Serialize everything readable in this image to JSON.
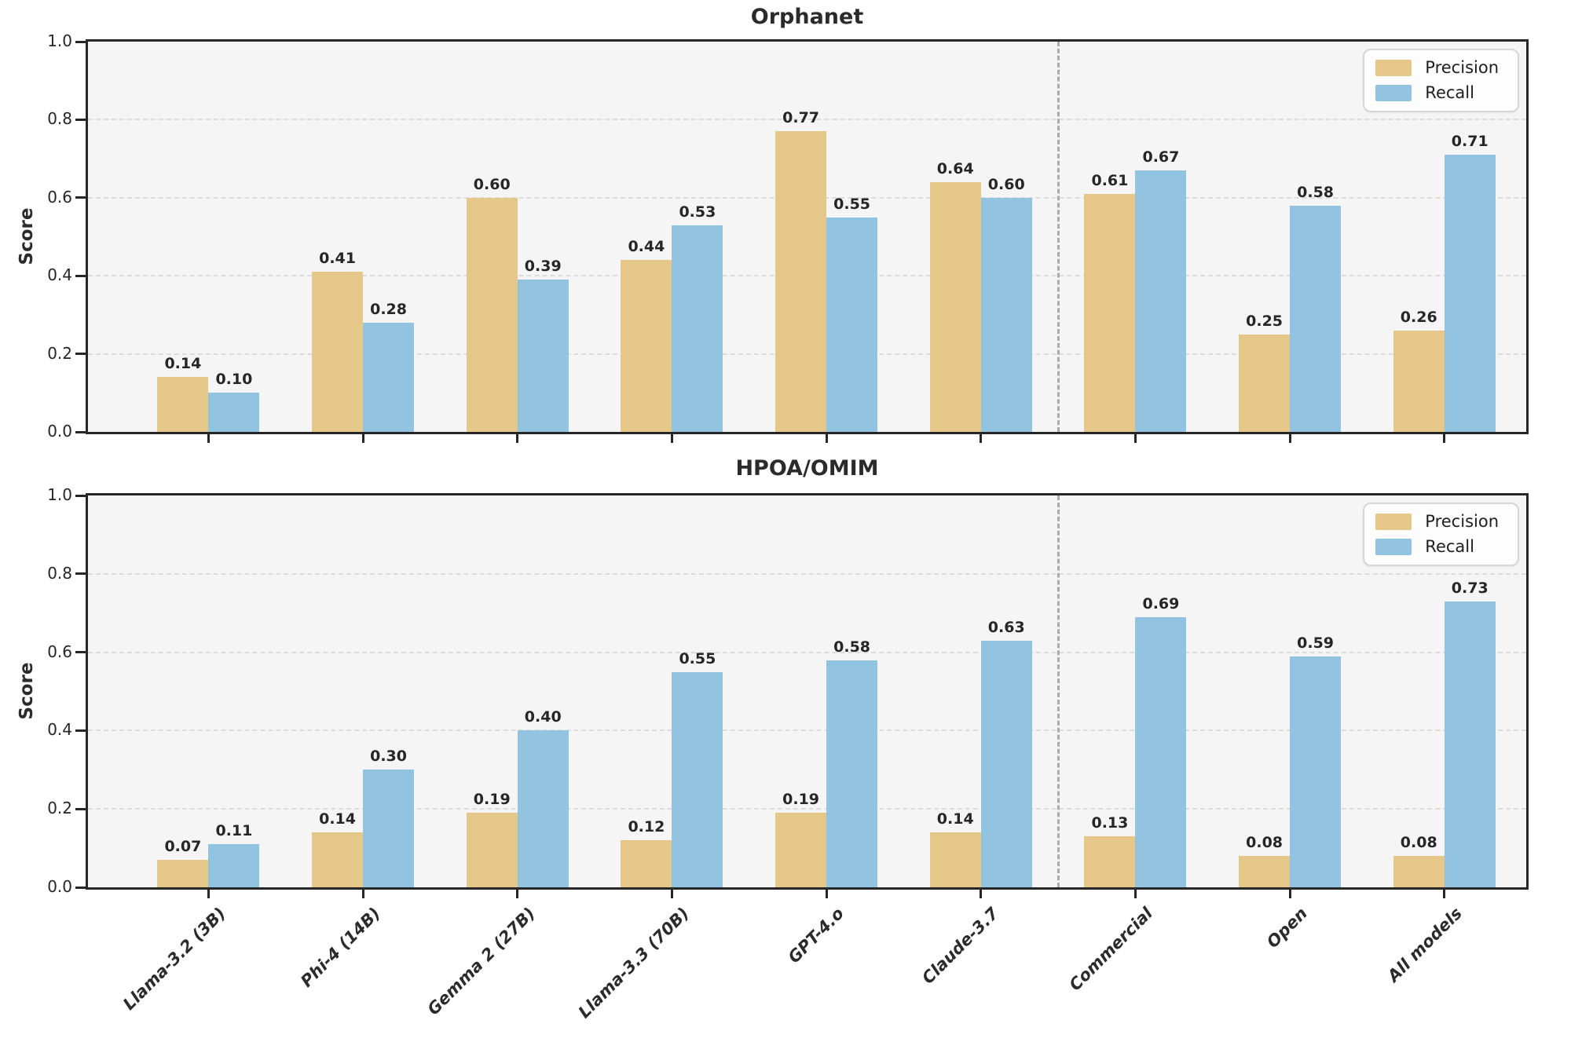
{
  "colors": {
    "precision": "#E5C78A",
    "recall": "#92C4E1",
    "plot_background": "#F5F5F5",
    "grid": "#DCDCDC",
    "spine": "#272727",
    "separator": "#ABABAB",
    "label_text": "#262626"
  },
  "chart_data": [
    {
      "type": "bar",
      "title": "Orphanet",
      "ylabel": "Score",
      "ylim": [
        0.0,
        1.0
      ],
      "ytick_labels": [
        "0.0",
        "0.2",
        "0.4",
        "0.6",
        "0.8",
        "1.0"
      ],
      "grid": "horizontal dashed at 0.2 intervals",
      "legend_position": "upper right",
      "legend": [
        "Precision",
        "Recall"
      ],
      "categories": [
        "Llama-3.2 (3B)",
        "Phi-4 (14B)",
        "Gemma 2 (27B)",
        "Llama-3.3 (70B)",
        "GPT-4.o",
        "Claude-3.7",
        "Commercial",
        "Open",
        "All models"
      ],
      "series": [
        {
          "name": "Precision",
          "values": [
            0.14,
            0.41,
            0.6,
            0.44,
            0.77,
            0.64,
            0.61,
            0.25,
            0.26
          ]
        },
        {
          "name": "Recall",
          "values": [
            0.1,
            0.28,
            0.39,
            0.53,
            0.55,
            0.6,
            0.67,
            0.58,
            0.71
          ]
        }
      ],
      "separator_after_category": "Claude-3.7",
      "x_tick_labels_visible": false
    },
    {
      "type": "bar",
      "title": "HPOA/OMIM",
      "ylabel": "Score",
      "ylim": [
        0.0,
        1.0
      ],
      "ytick_labels": [
        "0.0",
        "0.2",
        "0.4",
        "0.6",
        "0.8",
        "1.0"
      ],
      "grid": "horizontal dashed at 0.2 intervals",
      "legend_position": "upper right",
      "legend": [
        "Precision",
        "Recall"
      ],
      "categories": [
        "Llama-3.2 (3B)",
        "Phi-4 (14B)",
        "Gemma 2 (27B)",
        "Llama-3.3 (70B)",
        "GPT-4.o",
        "Claude-3.7",
        "Commercial",
        "Open",
        "All models"
      ],
      "series": [
        {
          "name": "Precision",
          "values": [
            0.07,
            0.14,
            0.19,
            0.12,
            0.19,
            0.14,
            0.13,
            0.08,
            0.08
          ]
        },
        {
          "name": "Recall",
          "values": [
            0.11,
            0.3,
            0.4,
            0.55,
            0.58,
            0.63,
            0.69,
            0.59,
            0.73
          ]
        }
      ],
      "separator_after_category": "Claude-3.7",
      "x_tick_labels_visible": true
    }
  ]
}
